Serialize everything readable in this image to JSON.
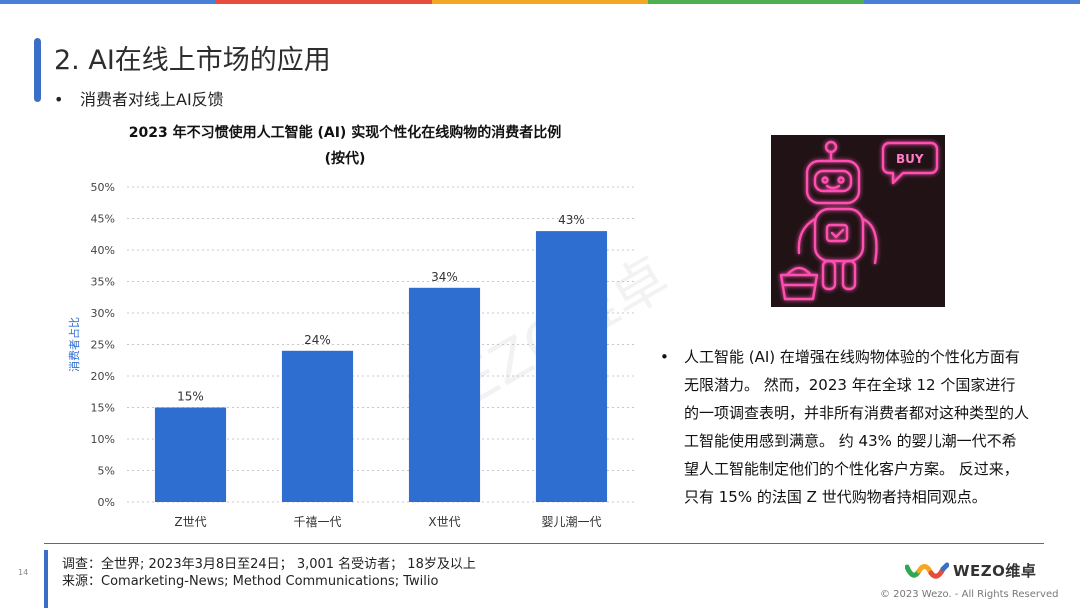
{
  "topbar_colors": [
    "#4a7fd6",
    "#e74c3c",
    "#f5a623",
    "#4caf50",
    "#4a7fd6"
  ],
  "slide": {
    "title": "2. AI在线上市场的应用",
    "bullet": "消费者对线上AI反馈",
    "bullet_marker": "•"
  },
  "chart_data": {
    "type": "bar",
    "title_line1": "2023 年不习惯使用人工智能 (AI) 实现个性化在线购物的消费者比例",
    "title_line2": "(按代)",
    "categories": [
      "Z世代",
      "千禧一代",
      "X世代",
      "婴儿潮一代"
    ],
    "values": [
      15,
      24,
      34,
      43
    ],
    "value_labels": [
      "15%",
      "24%",
      "34%",
      "43%"
    ],
    "ylabel": "消费者占比",
    "ylim": [
      0,
      50
    ],
    "yticks": [
      "0%",
      "5%",
      "10%",
      "15%",
      "20%",
      "25%",
      "30%",
      "35%",
      "40%",
      "45%",
      "50%"
    ],
    "bar_color": "#2f6ed1",
    "grid": "dotted horizontal"
  },
  "right_panel": {
    "image_icon": "robot-shopping-icon",
    "buy_label": "BUY",
    "bullet_marker": "•",
    "paragraph": "人工智能 (AI) 在增强在线购物体验的个性化方面有无限潜力。 然而，2023 年在全球 12 个国家进行的一项调查表明，并非所有消费者都对这种类型的人工智能使用感到满意。 约 43% 的婴儿潮一代不希望人工智能制定他们的个性化客户方案。 反过来，只有 15% 的法国 Z 世代购物者持相同观点。"
  },
  "watermark": "WEZO维卓",
  "footer": {
    "page_number": "14",
    "survey": "调查：全世界; 2023年3月8日至24日； 3,001 名受访者； 18岁及以上",
    "source": "来源：Comarketing-News; Method Communications; Twilio",
    "logo_text": "WEZO维卓",
    "copyright": "© 2023 Wezo. - All Rights Reserved"
  }
}
